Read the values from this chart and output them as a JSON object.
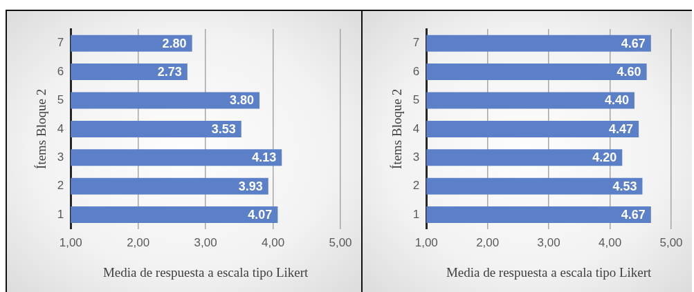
{
  "chart_data": [
    {
      "type": "bar",
      "orientation": "horizontal",
      "categories": [
        "7",
        "6",
        "5",
        "4",
        "3",
        "2",
        "1"
      ],
      "values": [
        2.8,
        2.73,
        3.8,
        3.53,
        4.13,
        3.93,
        4.07
      ],
      "value_labels": [
        "2.80",
        "2.73",
        "3.80",
        "3.53",
        "4.13",
        "3.93",
        "4.07"
      ],
      "color": "#5b80c8",
      "xlim": [
        1,
        5
      ],
      "xticks": [
        {
          "value": 1,
          "label": "1,00"
        },
        {
          "value": 2,
          "label": "2,00"
        },
        {
          "value": 3,
          "label": "3,00"
        },
        {
          "value": 4,
          "label": "4,00"
        },
        {
          "value": 5,
          "label": "5,00"
        }
      ],
      "xlabel": "Media de respuesta a escala tipo Likert",
      "ylabel": "Ítems Bloque 2",
      "grid": "x",
      "legend": false
    },
    {
      "type": "bar",
      "orientation": "horizontal",
      "categories": [
        "7",
        "6",
        "5",
        "4",
        "3",
        "2",
        "1"
      ],
      "values": [
        4.67,
        4.6,
        4.4,
        4.47,
        4.2,
        4.53,
        4.67
      ],
      "value_labels": [
        "4.67",
        "4.60",
        "4.40",
        "4.47",
        "4.20",
        "4.53",
        "4.67"
      ],
      "color": "#5b80c8",
      "xlim": [
        1,
        5
      ],
      "xticks": [
        {
          "value": 1,
          "label": "1,00"
        },
        {
          "value": 2,
          "label": "2,00"
        },
        {
          "value": 3,
          "label": "3,00"
        },
        {
          "value": 4,
          "label": "4,00"
        },
        {
          "value": 5,
          "label": "5,00"
        }
      ],
      "xlabel": "Media de respuesta a escala tipo Likert",
      "ylabel": "Ítems Bloque 2",
      "grid": "x",
      "legend": false
    }
  ]
}
